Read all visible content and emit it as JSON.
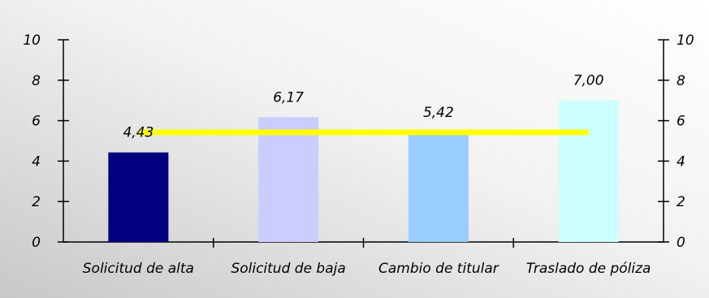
{
  "chart_data": {
    "type": "bar",
    "categories": [
      "Solicitud de alta",
      "Solicitud de baja",
      "Cambio de titular",
      "Traslado de póliza"
    ],
    "values": [
      4.43,
      6.17,
      5.42,
      7.0
    ],
    "data_labels": [
      "4,43",
      "6,17",
      "5,42",
      "7,00"
    ],
    "bar_colors": [
      "#000080",
      "#CCCCFF",
      "#99CCFF",
      "#CCFFFF"
    ],
    "average_line": {
      "value": 5.42,
      "color": "#FFFF00"
    },
    "ylim": [
      0,
      10
    ],
    "y_ticks": [
      0,
      2,
      4,
      6,
      8,
      10
    ],
    "y_tick_labels": [
      "0",
      "2",
      "4",
      "6",
      "8",
      "10"
    ],
    "secondary_y_axis": true,
    "grid": false,
    "title": "",
    "xlabel": "",
    "ylabel": "",
    "background": {
      "gradient_start": "#c8c8c8",
      "gradient_end": "#ffffff"
    }
  }
}
